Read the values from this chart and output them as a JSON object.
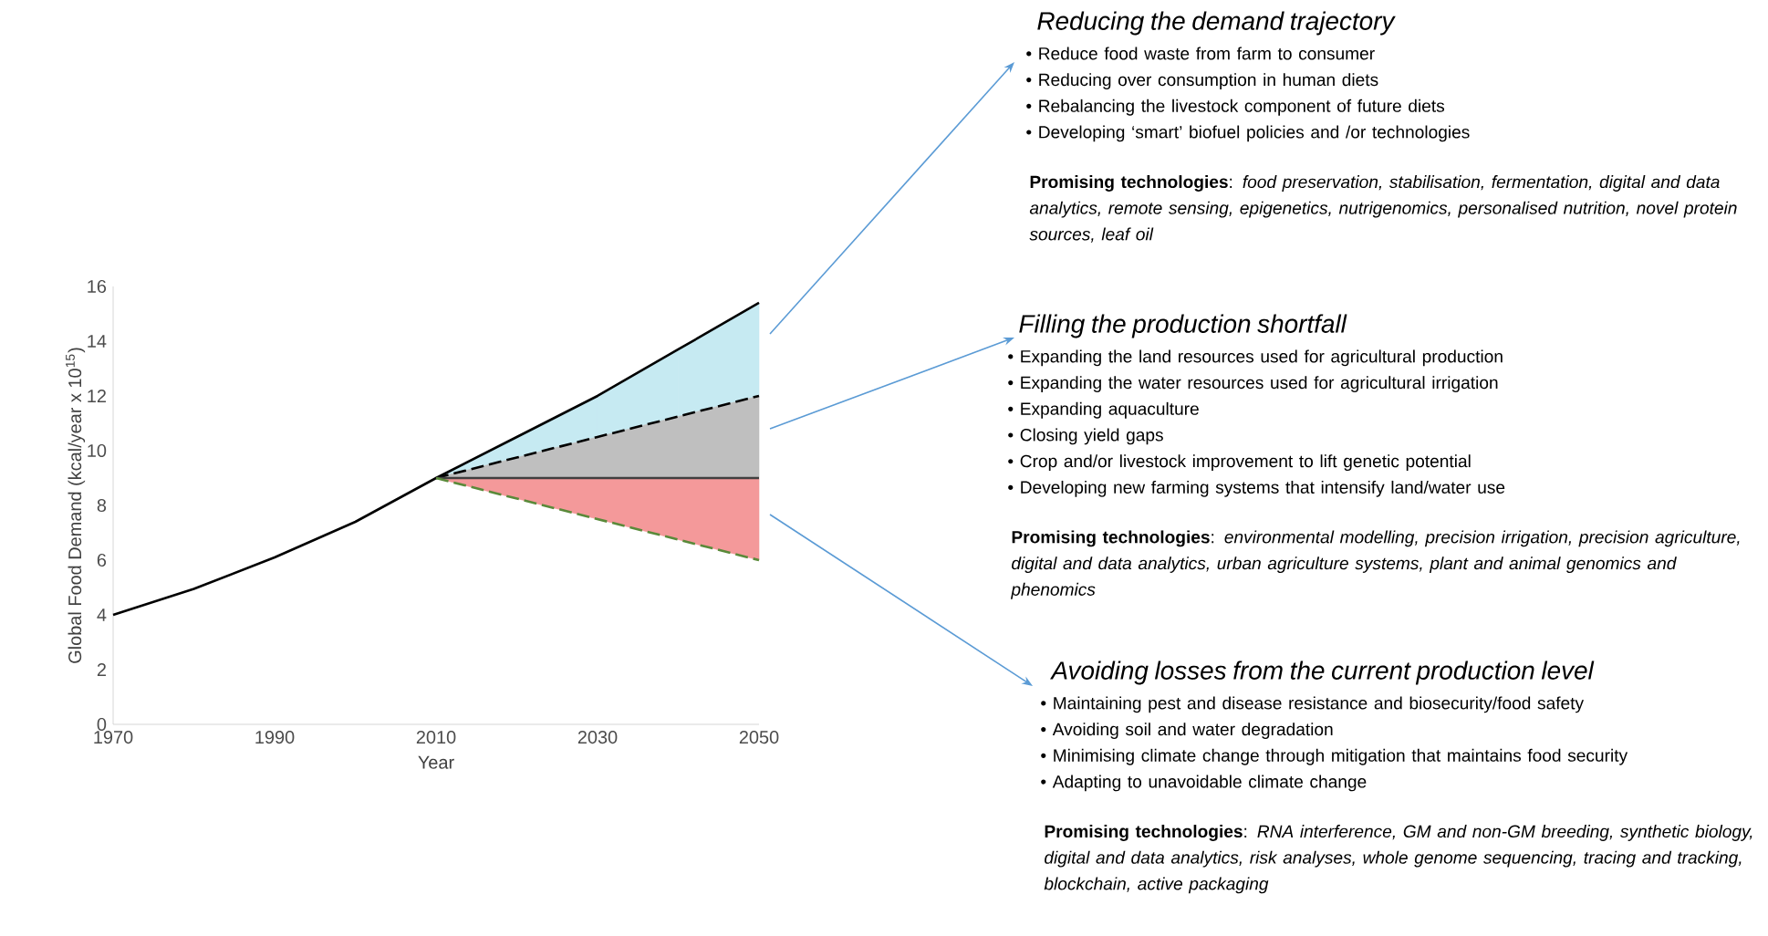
{
  "chart_data": {
    "type": "line",
    "xlabel": "Year",
    "ylabel": "Global Food Demand (kcal/year x 10$^{15}$)",
    "xlim": [
      1970,
      2050
    ],
    "xticks": [
      1970,
      1990,
      2010,
      2030,
      2050
    ],
    "ylim": [
      0,
      16
    ],
    "yticks": [
      0,
      2,
      4,
      6,
      8,
      10,
      12,
      14,
      16
    ],
    "marker": "none",
    "series": [
      {
        "color": "#000000",
        "line_style": "solid",
        "x": [
          1970,
          1980,
          1990,
          2000,
          2010,
          2020,
          2030,
          2040,
          2050
        ],
        "values": [
          4,
          4.95,
          6.1,
          7.4,
          9,
          10.5,
          12,
          13.7,
          15.4
        ]
      },
      {
        "color": "#000000",
        "line_style": "dashed",
        "x": [
          2010,
          2020,
          2030,
          2040,
          2050
        ],
        "values": [
          9,
          9.75,
          10.5,
          11.25,
          12
        ],
        "lower": [
          9,
          9.75,
          10.5,
          11.25,
          12
        ],
        "upper": [
          9,
          10.5,
          12,
          13.7,
          15.4
        ],
        "colors": [
          "#c6eaf2",
          "#c6eaf2",
          "#c6eaf2",
          "#c6eaf2",
          "#c6eaf2"
        ]
      },
      {
        "color": "#404040",
        "line_style": "solid",
        "x": [
          2010,
          2050
        ],
        "values": [
          9,
          9
        ],
        "lower": [
          9,
          9
        ],
        "upper": [
          9,
          12
        ],
        "colors": [
          "#bfbfbf",
          "#bfbfbf"
        ]
      },
      {
        "color": "#5a8a3a",
        "line_style": "dashed",
        "x": [
          2010,
          2050
        ],
        "values": [
          9,
          6
        ],
        "lower": [
          9,
          6
        ],
        "upper": [
          9,
          9
        ],
        "colors": [
          "#f4999a",
          "#f4999a"
        ]
      }
    ],
    "annotations": [
      "Reducing the demand trajectory",
      "• Reduce food waste from farm to consumer",
      "• Reducing over consumption in human diets",
      "• Rebalancing the livestock component of future diets",
      "• Developing ‘smart’ biofuel policies and /or technologies",
      "**Promising technologies**: *food preservation, stabilisation, fermentation, digital and data analytics, remote sensing, epigenetics, nutrigenomics, personalised nutrition, novel protein sources, leaf oil*",
      "Filling the production shortfall",
      "• Expanding the land resources used for agricultural production",
      "• Expanding the water resources used for agricultural irrigation",
      "• Expanding aquaculture",
      "• Closing yield gaps",
      "• Crop and/or livestock improvement to lift genetic potential",
      "• Developing new farming systems that intensify land/water use",
      "**Promising technologies**: *environmental modelling, precision irrigation, precision agriculture, digital and data analytics, urban agriculture systems, plant and animal genomics and phenomics*",
      "Avoiding losses from the current production level",
      "• Maintaining pest and disease resistance and biosecurity/food safety",
      "• Avoiding soil and water degradation",
      "• Minimising climate change through mitigation that maintains food security",
      "• Adapting to unavoidable climate change",
      "**Promising technologies**: *RNA interference, GM and non-GM breeding, synthetic biology, digital and data analytics, risk analyses, whole genome sequencing, tracing and tracking, blockchain, active packaging*"
    ]
  }
}
